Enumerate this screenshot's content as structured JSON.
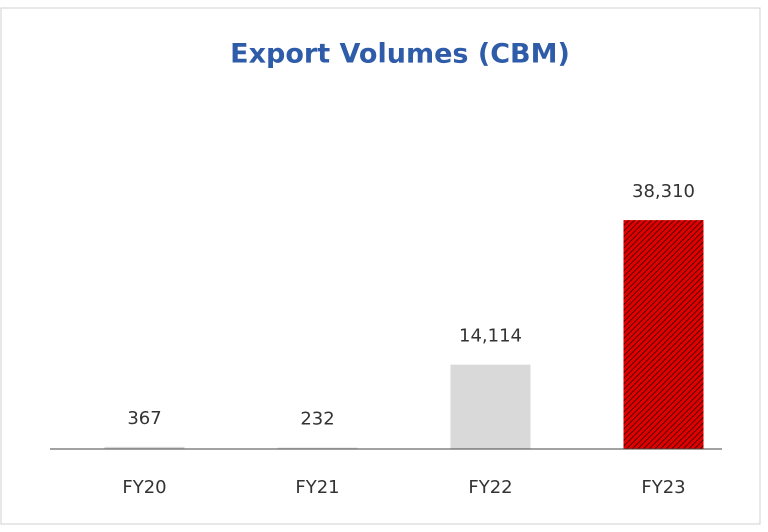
{
  "chart_data": {
    "type": "bar",
    "title": "Export Volumes (CBM)",
    "categories": [
      "FY20",
      "FY21",
      "FY22",
      "FY23"
    ],
    "values": [
      367,
      232,
      14114,
      38310
    ],
    "value_labels": [
      "367",
      "232",
      "14,114",
      "38,310"
    ],
    "colors": [
      "#d9d9d9",
      "#d9d9d9",
      "#d9d9d9",
      "#e00000"
    ],
    "hatched": [
      false,
      false,
      false,
      true
    ],
    "ylim": [
      0,
      40000
    ]
  }
}
